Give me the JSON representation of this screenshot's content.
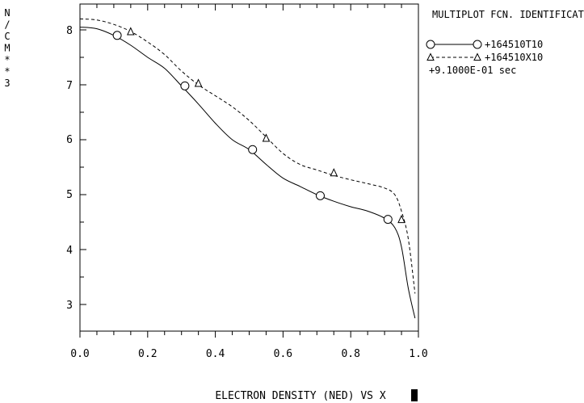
{
  "chart_data": {
    "type": "line",
    "title": "MULTIPLOT FCN. IDENTIFICATION",
    "xlabel": "ELECTRON DENSITY (NED) VS X",
    "ylabel": "N/CM**3",
    "xlim": [
      0.0,
      1.0
    ],
    "ylim": [
      2.5,
      9.0
    ],
    "x_ticks": [
      "0.0",
      "0.2",
      "0.4",
      "0.6",
      "0.8",
      "1.0"
    ],
    "y_ticks": [
      "3",
      "4",
      "5",
      "6",
      "7",
      "8"
    ],
    "legend_placement": "top-right",
    "note": "+9.1000E-01 sec",
    "series": [
      {
        "name": "+164510T10",
        "style": "solid",
        "marker": "circle",
        "x": [
          0.0,
          0.05,
          0.1,
          0.15,
          0.2,
          0.25,
          0.3,
          0.35,
          0.4,
          0.45,
          0.5,
          0.55,
          0.6,
          0.65,
          0.7,
          0.75,
          0.8,
          0.85,
          0.9,
          0.93,
          0.95,
          0.97,
          0.99
        ],
        "values": [
          8.05,
          8.02,
          7.9,
          7.72,
          7.5,
          7.3,
          6.98,
          6.65,
          6.3,
          6.0,
          5.82,
          5.55,
          5.3,
          5.15,
          5.0,
          4.88,
          4.78,
          4.7,
          4.57,
          4.4,
          4.05,
          3.3,
          2.75
        ],
        "marker_x": [
          0.11,
          0.31,
          0.51,
          0.71,
          0.91
        ],
        "marker_values": [
          7.9,
          6.98,
          5.82,
          4.98,
          4.55
        ]
      },
      {
        "name": "+164510X10",
        "style": "dashed",
        "marker": "triangle",
        "x": [
          0.0,
          0.05,
          0.1,
          0.15,
          0.2,
          0.25,
          0.3,
          0.35,
          0.4,
          0.45,
          0.5,
          0.55,
          0.6,
          0.65,
          0.7,
          0.75,
          0.8,
          0.85,
          0.9,
          0.93,
          0.95,
          0.97,
          0.99
        ],
        "values": [
          8.2,
          8.18,
          8.1,
          7.97,
          7.78,
          7.55,
          7.25,
          7.0,
          6.8,
          6.6,
          6.35,
          6.05,
          5.75,
          5.55,
          5.45,
          5.35,
          5.27,
          5.2,
          5.12,
          5.0,
          4.7,
          4.2,
          3.2
        ],
        "marker_x": [
          0.15,
          0.35,
          0.55,
          0.75,
          0.95
        ],
        "marker_values": [
          7.97,
          7.03,
          6.03,
          5.4,
          4.55
        ]
      }
    ]
  }
}
